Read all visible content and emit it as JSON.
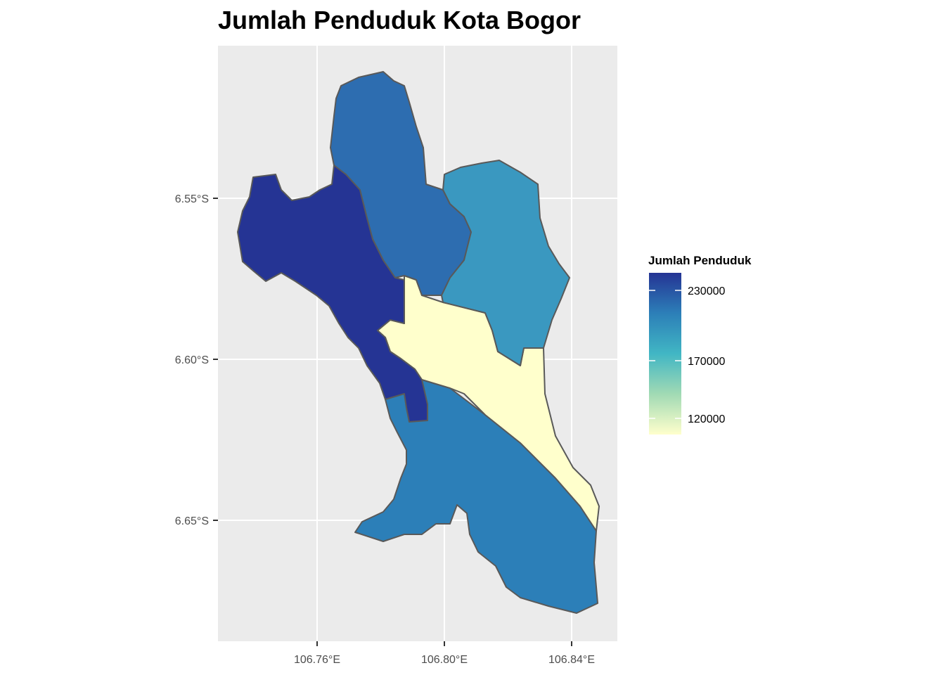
{
  "title": "Jumlah Penduduk Kota Bogor",
  "colors": {
    "panel_bg": "#ebebeb",
    "grid": "#ffffff",
    "border": "#595959"
  },
  "axes": {
    "x_ticks": [
      "106.76°E",
      "106.80°E",
      "106.84°E"
    ],
    "y_ticks": [
      "6.55°S",
      "6.60°S",
      "6.65°S"
    ]
  },
  "legend": {
    "title": "Jumlah Penduduk",
    "ticks": [
      "230000",
      "170000",
      "120000"
    ],
    "gradient": [
      "#253494",
      "#2c7fb8",
      "#41b6c4",
      "#a1dab4",
      "#ffffcc"
    ]
  },
  "chart_data": {
    "type": "choropleth",
    "title": "Jumlah Penduduk Kota Bogor",
    "fill_variable": "Jumlah Penduduk",
    "fill_range": [
      105000,
      245000
    ],
    "x_ticks": [
      "106.76°E",
      "106.80°E",
      "106.84°E"
    ],
    "y_ticks": [
      "6.55°S",
      "6.60°S",
      "6.65°S"
    ],
    "legend_position": "right",
    "grid": true,
    "regions": [
      {
        "id": "region-west",
        "value": 240000,
        "color": "#253494"
      },
      {
        "id": "region-north",
        "value": 210000,
        "color": "#2d6db0"
      },
      {
        "id": "region-east",
        "value": 180000,
        "color": "#3a98c0"
      },
      {
        "id": "region-south",
        "value": 205000,
        "color": "#2c7fb8"
      },
      {
        "id": "region-central",
        "value": 107000,
        "color": "#ffffcc"
      }
    ]
  }
}
